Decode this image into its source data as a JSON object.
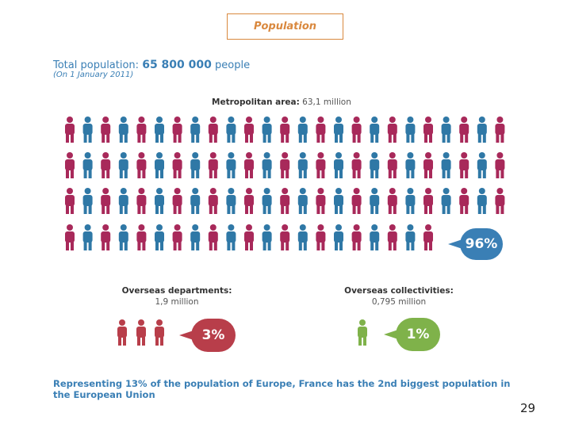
{
  "title": "Population",
  "total": {
    "prefix": "Total population:",
    "number": "65 800 000",
    "suffix": "people",
    "date": "(On 1 January 2011)"
  },
  "metropolitan": {
    "label": "Metropolitan area:",
    "value": "63,1 million",
    "percent": "96%"
  },
  "overseas_departments": {
    "label": "Overseas departments:",
    "value": "1,9 million",
    "percent": "3%"
  },
  "overseas_collectivities": {
    "label": "Overseas collectivities:",
    "value": "0,795 million",
    "percent": "1%"
  },
  "footer": "Representing 13% of the population of Europe, France has the 2nd biggest population in the European Union",
  "page_number": "29",
  "colors": {
    "magenta": "#a8295a",
    "blue": "#2f78a6",
    "red": "#b83e4a",
    "green": "#7fb24a",
    "orange": "#d9883e"
  }
}
